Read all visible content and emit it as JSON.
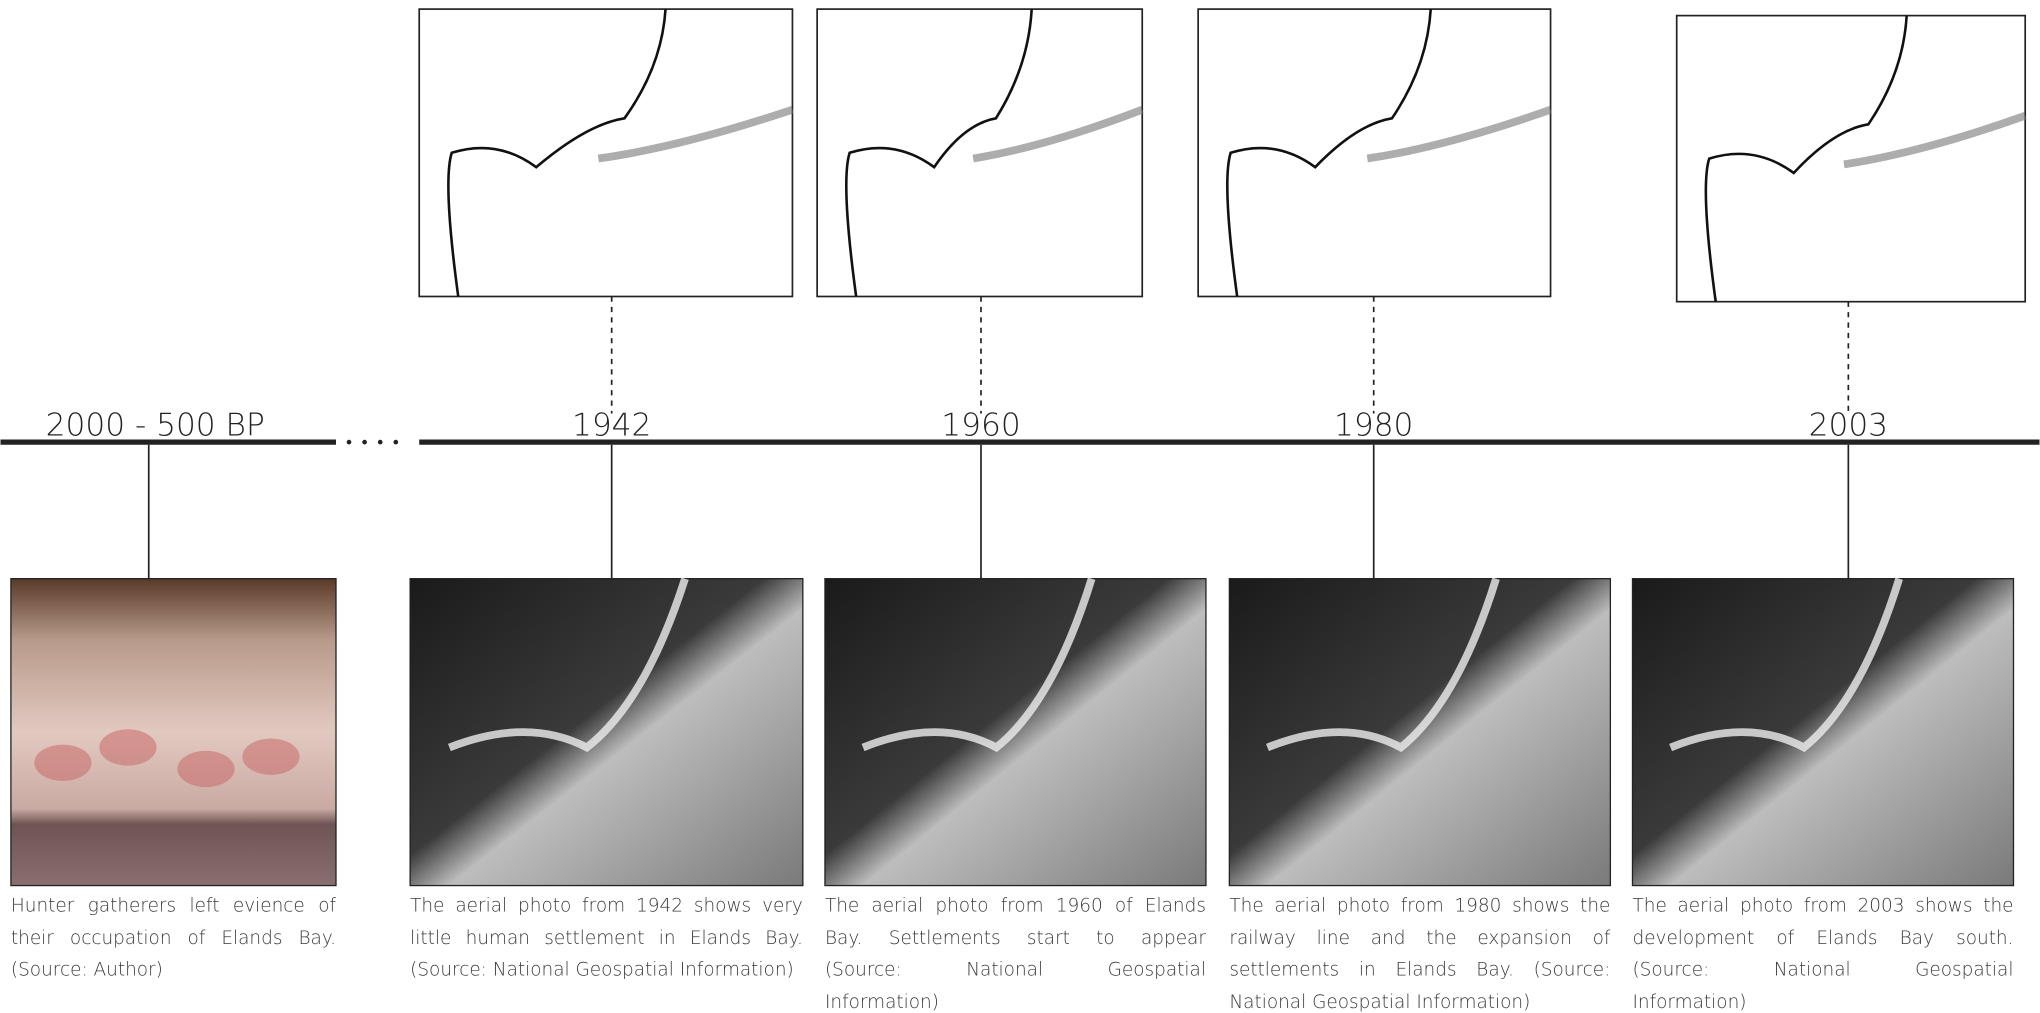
{
  "timeline": {
    "entries": [
      {
        "label": "2000 - 500 BP",
        "caption": "Hunter gatherers left evience of their occupation of Elands Bay. (Source: Author)"
      },
      {
        "label": "1942",
        "caption": "The aerial photo from 1942 shows very little human settlement in Elands Bay. (Source: National Geospatial Information)"
      },
      {
        "label": "1960",
        "caption": "The aerial photo from 1960 of Elands Bay. Settlements start to appear (Source: National Geospatial Information)"
      },
      {
        "label": "1980",
        "caption": "The aerial photo from 1980 shows the railway line and the expansion of settlements in Elands Bay. (Source: National Geospatial Information)"
      },
      {
        "label": "2003",
        "caption": "The aerial photo from 2003 shows the development of Elands Bay south. (Source: National Geospatial Information)"
      }
    ]
  }
}
